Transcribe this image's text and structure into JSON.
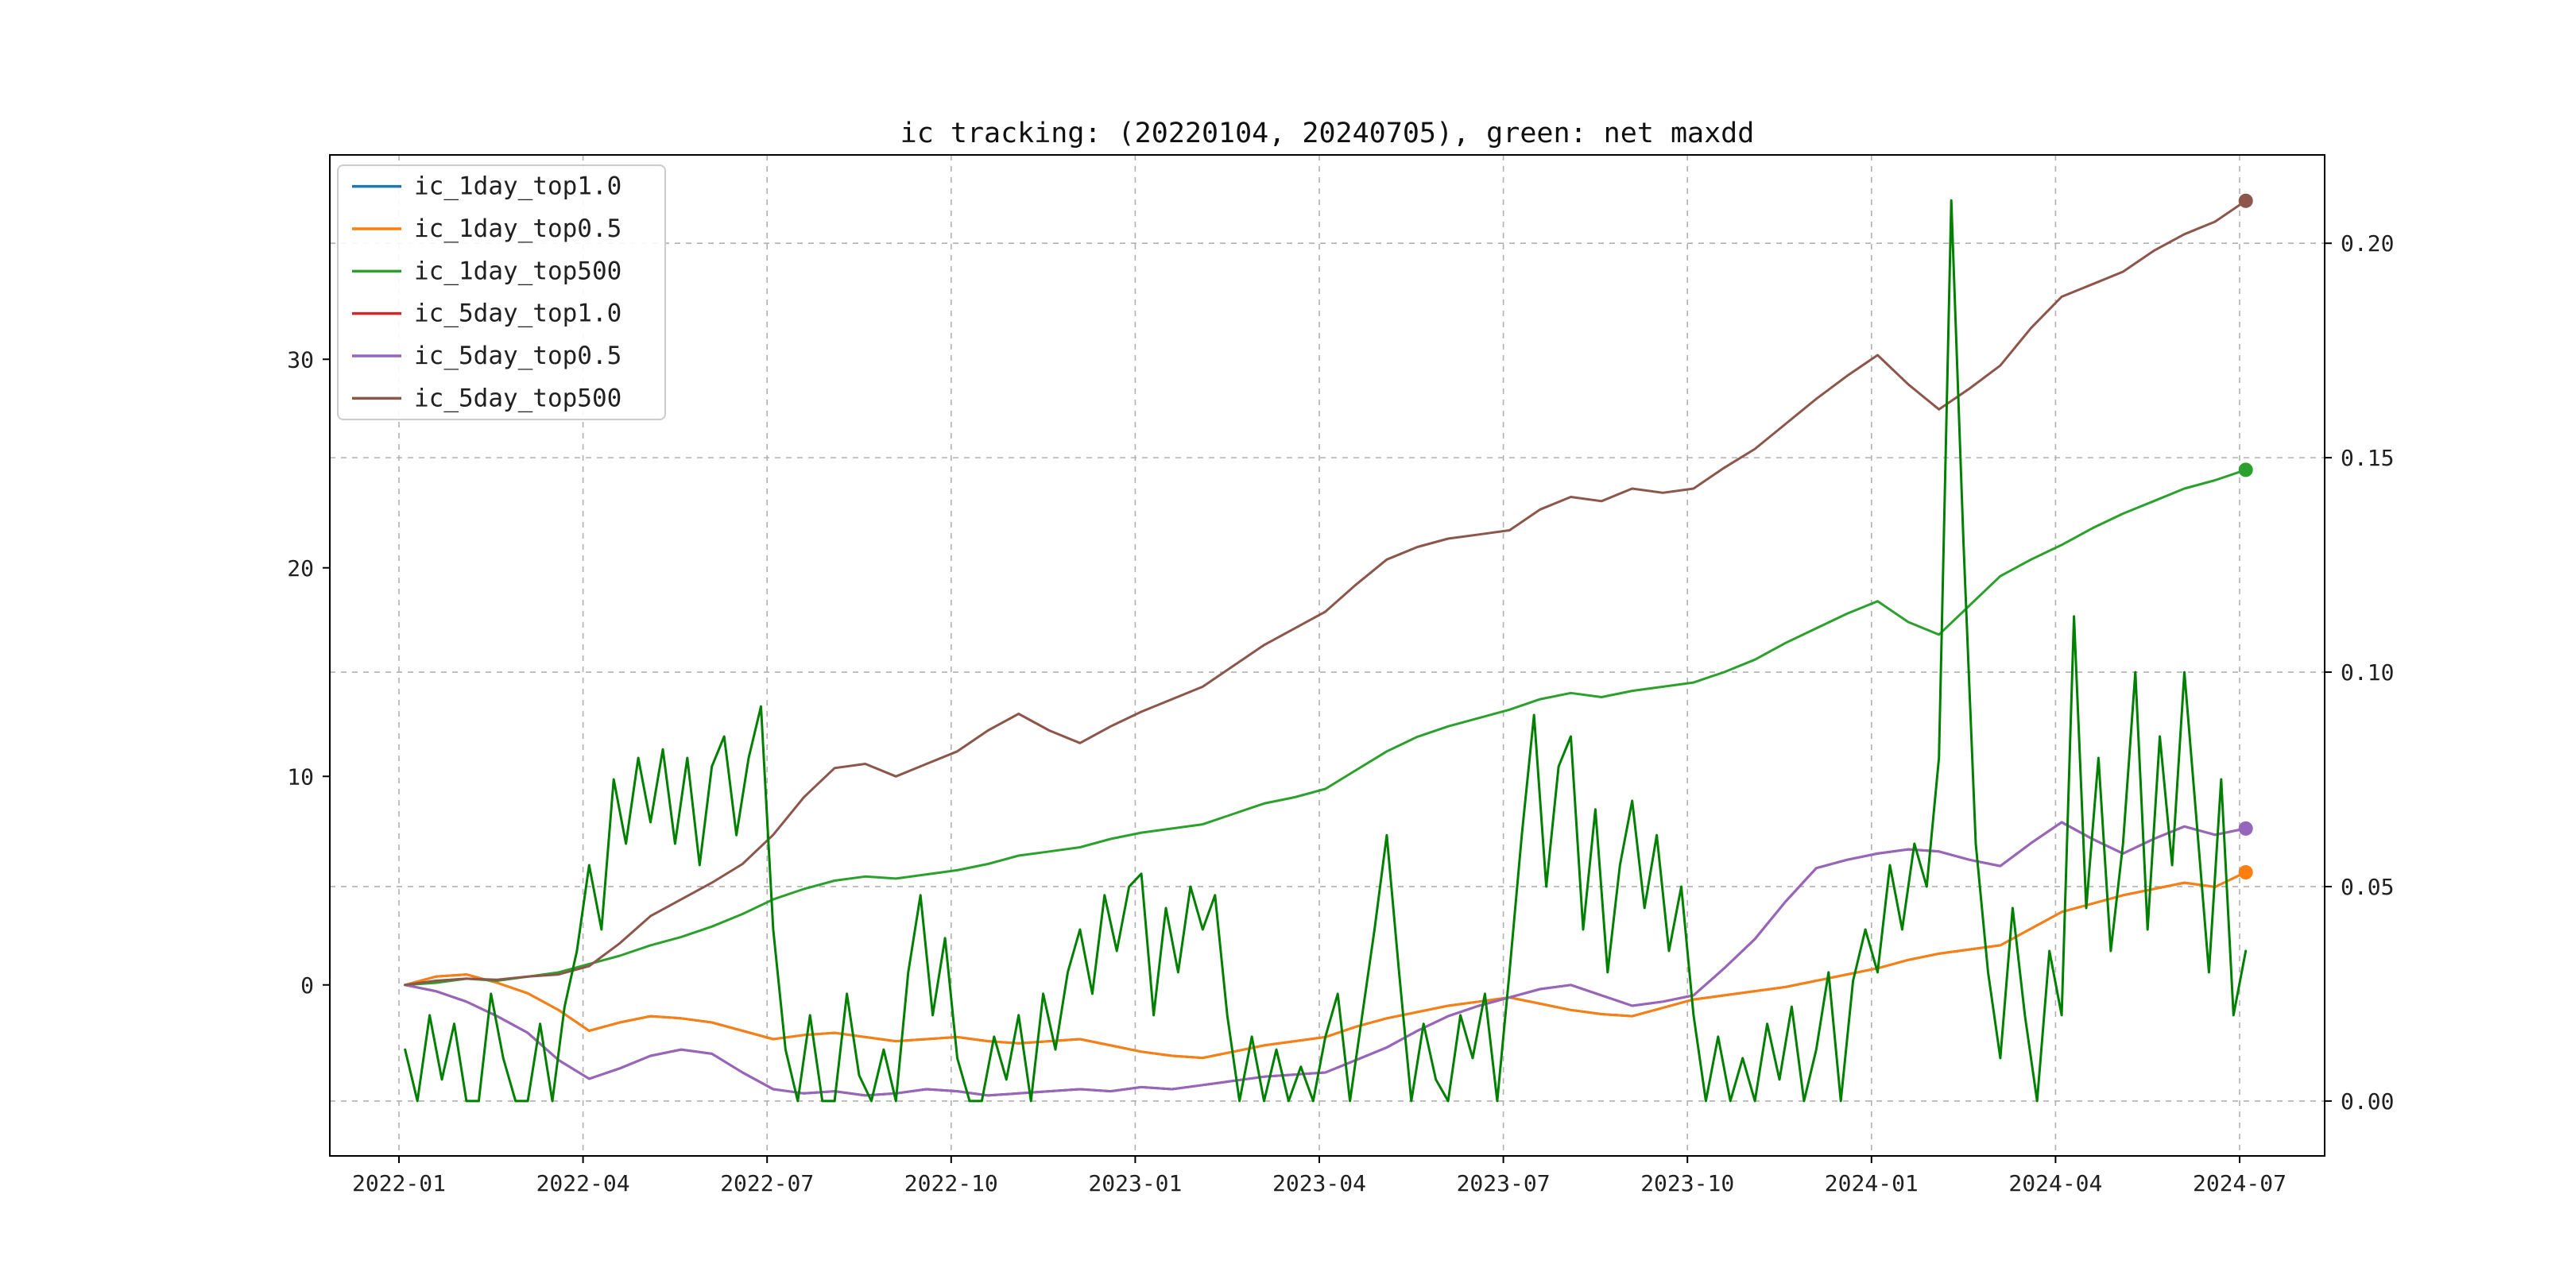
{
  "chart_data": {
    "type": "line",
    "title": "ic tracking: (20220104, 20240705), green: net maxdd",
    "x_tick_labels": [
      "2022-01",
      "2022-04",
      "2022-07",
      "2022-10",
      "2023-01",
      "2023-04",
      "2023-07",
      "2023-10",
      "2024-01",
      "2024-04",
      "2024-07"
    ],
    "x_tick_months": [
      0,
      3,
      6,
      9,
      12,
      15,
      18,
      21,
      24,
      27,
      30
    ],
    "left_tick_labels": [
      "0",
      "10",
      "20",
      "30"
    ],
    "left_tick_values": [
      0,
      10,
      20,
      30
    ],
    "right_tick_labels": [
      "0.00",
      "0.05",
      "0.10",
      "0.15",
      "0.20"
    ],
    "right_tick_values": [
      0.0,
      0.05,
      0.1,
      0.15,
      0.2
    ],
    "left_ylim": [
      -8.2,
      39.8
    ],
    "right_ylim": [
      -0.0128,
      0.2206
    ],
    "x_span_months": [
      0.1,
      30.1
    ],
    "grid": "dashed",
    "legend_position": "upper-left",
    "series": [
      {
        "name": "ic_1day_top1.0",
        "color": "#1f77b4",
        "axis": "left",
        "marker": false,
        "values": [
          0,
          0.4,
          0.5,
          0.1,
          -0.4,
          -1.2,
          -2.2,
          -1.8,
          -1.5,
          -1.6,
          -1.8,
          -2.2,
          -2.6,
          -2.4,
          -2.3,
          -2.5,
          -2.7,
          -2.6,
          -2.5,
          -2.7,
          -2.8,
          -2.7,
          -2.6,
          -2.9,
          -3.2,
          -3.4,
          -3.5,
          -3.2,
          -2.9,
          -2.7,
          -2.5,
          -2,
          -1.6,
          -1.3,
          -1,
          -0.8,
          -0.6,
          -0.9,
          -1.2,
          -1.4,
          -1.5,
          -1.1,
          -0.7,
          -0.5,
          -0.3,
          -0.1,
          0.2,
          0.5,
          0.8,
          1.2,
          1.5,
          1.7,
          1.9,
          2.7,
          3.5,
          3.9,
          4.3,
          4.6,
          4.9,
          4.7,
          5.4
        ]
      },
      {
        "name": "ic_1day_top0.5",
        "color": "#ff7f0e",
        "axis": "left",
        "marker": true,
        "values": [
          0,
          0.4,
          0.5,
          0.1,
          -0.4,
          -1.2,
          -2.2,
          -1.8,
          -1.5,
          -1.6,
          -1.8,
          -2.2,
          -2.6,
          -2.4,
          -2.3,
          -2.5,
          -2.7,
          -2.6,
          -2.5,
          -2.7,
          -2.8,
          -2.7,
          -2.6,
          -2.9,
          -3.2,
          -3.4,
          -3.5,
          -3.2,
          -2.9,
          -2.7,
          -2.5,
          -2,
          -1.6,
          -1.3,
          -1,
          -0.8,
          -0.6,
          -0.9,
          -1.2,
          -1.4,
          -1.5,
          -1.1,
          -0.7,
          -0.5,
          -0.3,
          -0.1,
          0.2,
          0.5,
          0.8,
          1.2,
          1.5,
          1.7,
          1.9,
          2.7,
          3.5,
          3.9,
          4.3,
          4.6,
          4.9,
          4.7,
          5.4
        ]
      },
      {
        "name": "ic_1day_top500",
        "color": "#2ca02c",
        "axis": "left",
        "marker": true,
        "values": [
          0,
          0.1,
          0.3,
          0.2,
          0.4,
          0.6,
          1,
          1.4,
          1.9,
          2.3,
          2.8,
          3.4,
          4.1,
          4.6,
          5,
          5.2,
          5.1,
          5.3,
          5.5,
          5.8,
          6.2,
          6.4,
          6.6,
          7,
          7.3,
          7.5,
          7.7,
          8.2,
          8.7,
          9,
          9.4,
          10.3,
          11.2,
          11.9,
          12.4,
          12.8,
          13.2,
          13.7,
          14,
          13.8,
          14.1,
          14.3,
          14.5,
          15,
          15.6,
          16.4,
          17.1,
          17.8,
          18.4,
          17.4,
          16.8,
          18.2,
          19.6,
          20.4,
          21.1,
          21.9,
          22.6,
          23.2,
          23.8,
          24.2,
          24.7
        ]
      },
      {
        "name": "ic_5day_top1.0",
        "color": "#d62728",
        "axis": "left",
        "marker": false,
        "values": [
          0,
          -0.3,
          -0.8,
          -1.5,
          -2.3,
          -3.6,
          -4.5,
          -4,
          -3.4,
          -3.1,
          -3.3,
          -4.2,
          -5,
          -5.2,
          -5.1,
          -5.3,
          -5.2,
          -5,
          -5.1,
          -5.3,
          -5.2,
          -5.1,
          -5,
          -5.1,
          -4.9,
          -5,
          -4.8,
          -4.6,
          -4.4,
          -4.3,
          -4.2,
          -3.6,
          -3,
          -2.2,
          -1.5,
          -1,
          -0.6,
          -0.2,
          0,
          -0.5,
          -1,
          -0.8,
          -0.5,
          0.8,
          2.2,
          4,
          5.6,
          6,
          6.3,
          6.5,
          6.4,
          6,
          5.7,
          6.8,
          7.8,
          7,
          6.3,
          7,
          7.6,
          7.2,
          7.5
        ]
      },
      {
        "name": "ic_5day_top0.5",
        "color": "#9467bd",
        "axis": "left",
        "marker": true,
        "values": [
          0,
          -0.3,
          -0.8,
          -1.5,
          -2.3,
          -3.6,
          -4.5,
          -4,
          -3.4,
          -3.1,
          -3.3,
          -4.2,
          -5,
          -5.2,
          -5.1,
          -5.3,
          -5.2,
          -5,
          -5.1,
          -5.3,
          -5.2,
          -5.1,
          -5,
          -5.1,
          -4.9,
          -5,
          -4.8,
          -4.6,
          -4.4,
          -4.3,
          -4.2,
          -3.6,
          -3,
          -2.2,
          -1.5,
          -1,
          -0.6,
          -0.2,
          0,
          -0.5,
          -1,
          -0.8,
          -0.5,
          0.8,
          2.2,
          4,
          5.6,
          6,
          6.3,
          6.5,
          6.4,
          6,
          5.7,
          6.8,
          7.8,
          7,
          6.3,
          7,
          7.6,
          7.2,
          7.5
        ]
      },
      {
        "name": "ic_5day_top500",
        "color": "#8c564b",
        "axis": "left",
        "marker": true,
        "values": [
          0,
          0.2,
          0.3,
          0.25,
          0.4,
          0.5,
          0.9,
          2,
          3.3,
          4.1,
          4.9,
          5.8,
          7.2,
          9,
          10.4,
          10.6,
          10,
          10.6,
          11.2,
          12.2,
          13,
          12.2,
          11.6,
          12.4,
          13.1,
          13.7,
          14.3,
          15.3,
          16.3,
          17.1,
          17.9,
          19.2,
          20.4,
          21,
          21.4,
          21.6,
          21.8,
          22.8,
          23.4,
          23.2,
          23.8,
          23.6,
          23.8,
          24.8,
          25.7,
          26.9,
          28.1,
          29.2,
          30.2,
          28.8,
          27.6,
          28.6,
          29.7,
          31.5,
          33,
          33.6,
          34.2,
          35.2,
          36,
          36.6,
          37.6
        ]
      }
    ],
    "maxdd_series": {
      "name": "net maxdd",
      "color": "#008000",
      "axis": "right",
      "marker": false,
      "values": [
        0.012,
        0,
        0.02,
        0.005,
        0.018,
        0,
        0,
        0.025,
        0.01,
        0,
        0,
        0.018,
        0,
        0.022,
        0.035,
        0.055,
        0.04,
        0.075,
        0.06,
        0.08,
        0.065,
        0.082,
        0.06,
        0.08,
        0.055,
        0.078,
        0.085,
        0.062,
        0.08,
        0.092,
        0.04,
        0.012,
        0,
        0.02,
        0,
        0,
        0.025,
        0.006,
        0,
        0.012,
        0,
        0.03,
        0.048,
        0.02,
        0.038,
        0.01,
        0,
        0,
        0.015,
        0.005,
        0.02,
        0,
        0.025,
        0.012,
        0.03,
        0.04,
        0.025,
        0.048,
        0.035,
        0.05,
        0.053,
        0.02,
        0.045,
        0.03,
        0.05,
        0.04,
        0.048,
        0.02,
        0,
        0.015,
        0,
        0.012,
        0,
        0.008,
        0,
        0.015,
        0.025,
        0,
        0.02,
        0.04,
        0.062,
        0.03,
        0,
        0.018,
        0.005,
        0,
        0.02,
        0.01,
        0.025,
        0,
        0.03,
        0.062,
        0.09,
        0.05,
        0.078,
        0.085,
        0.04,
        0.068,
        0.03,
        0.055,
        0.07,
        0.045,
        0.062,
        0.035,
        0.05,
        0.02,
        0,
        0.015,
        0,
        0.01,
        0,
        0.018,
        0.005,
        0.022,
        0,
        0.012,
        0.03,
        0,
        0.028,
        0.04,
        0.03,
        0.055,
        0.04,
        0.06,
        0.05,
        0.08,
        0.21,
        0.13,
        0.06,
        0.03,
        0.01,
        0.045,
        0.02,
        0,
        0.035,
        0.02,
        0.113,
        0.045,
        0.08,
        0.035,
        0.06,
        0.1,
        0.04,
        0.085,
        0.055,
        0.1,
        0.065,
        0.03,
        0.075,
        0.02,
        0.035
      ]
    },
    "colors": {
      "grid": "#b0b0b0",
      "spine": "#000000",
      "tick_label": "#202020",
      "legend_border": "#cccccc"
    }
  }
}
